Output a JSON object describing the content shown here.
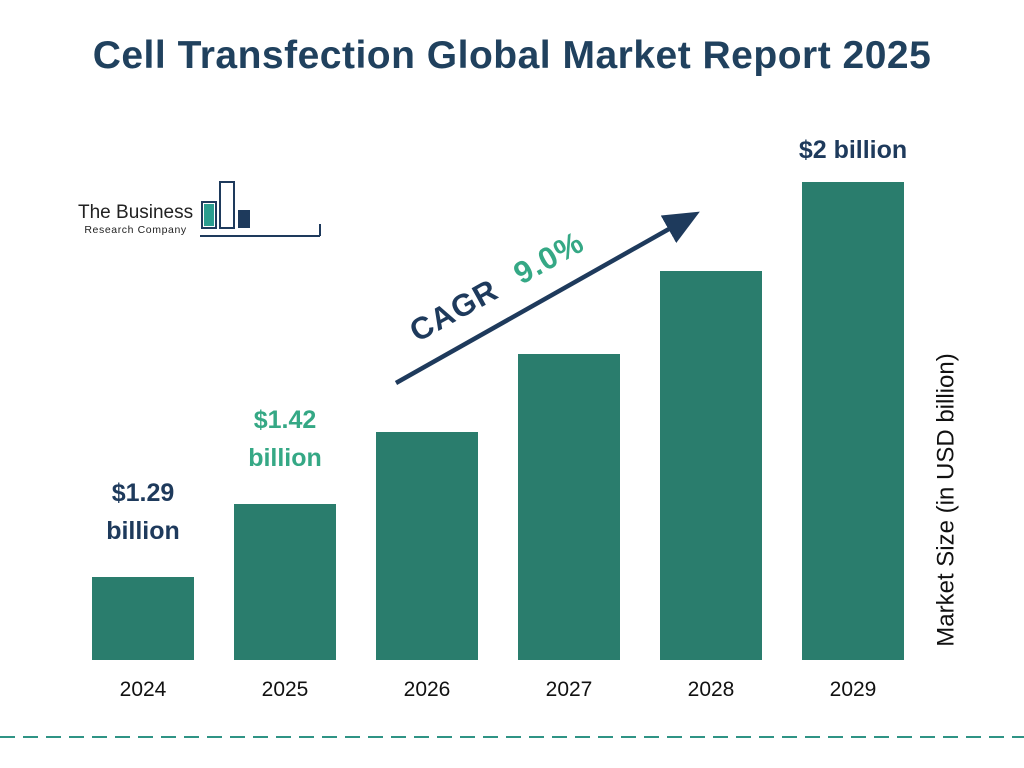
{
  "title": "Cell Transfection Global Market Report 2025",
  "logo": {
    "line1": "The Business",
    "line2": "Research Company"
  },
  "colors": {
    "bar": "#2a7d6d",
    "navy": "#1e3a5c",
    "green": "#35a885"
  },
  "chart_data": {
    "type": "bar",
    "title": "Cell Transfection Global Market Report 2025",
    "categories": [
      "2024",
      "2025",
      "2026",
      "2027",
      "2028",
      "2029"
    ],
    "values": [
      1.29,
      1.42,
      1.55,
      1.69,
      1.84,
      2.0
    ],
    "xlabel": "",
    "ylabel": "Market Size (in USD billion)",
    "ylim": [
      1.14,
      2.05
    ],
    "grid": false,
    "legend": "none",
    "bar_labels": [
      {
        "index": 0,
        "lines": [
          "$1.29",
          "billion"
        ],
        "color": "navy"
      },
      {
        "index": 1,
        "lines": [
          "$1.42",
          "billion"
        ],
        "color": "green"
      },
      {
        "index": 5,
        "lines": [
          "$2 billion"
        ],
        "color": "navy"
      }
    ],
    "annotation": {
      "prefix": "CAGR",
      "value": "9.0%"
    }
  }
}
